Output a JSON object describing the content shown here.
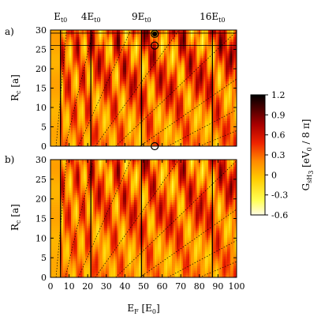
{
  "chart_data": [
    {
      "type": "heatmap",
      "panel": "a)",
      "xlabel": {
        "main": "E",
        "sub": "F",
        "unit": " [E",
        "unit_sub": "0",
        "unit_end": "]"
      },
      "ylabel": {
        "main": "R",
        "sub": "c",
        "unit": " [a]"
      },
      "xlim": [
        0,
        100
      ],
      "ylim": [
        0,
        30
      ],
      "y_ticks": [
        0,
        5,
        10,
        15,
        20,
        25,
        30
      ],
      "top_markers": [
        {
          "coef": "",
          "x": 5.4
        },
        {
          "coef": "4",
          "x": 21.7
        },
        {
          "coef": "9",
          "x": 48.9
        },
        {
          "coef": "16",
          "x": 87.0
        }
      ],
      "marker_label_main": "E",
      "marker_label_sub": "t0",
      "horizontal_lines_y": [
        26,
        29.2
      ],
      "circles": [
        {
          "x": 56,
          "y": 29
        },
        {
          "x": 56,
          "y": 26
        },
        {
          "x": 56,
          "y": 0
        }
      ],
      "filled_circle": {
        "x": 56,
        "y": 29
      }
    },
    {
      "type": "heatmap",
      "panel": "b)",
      "xlim": [
        0,
        100
      ],
      "ylim": [
        0,
        30
      ],
      "x_ticks": [
        0,
        10,
        20,
        30,
        40,
        50,
        60,
        70,
        80,
        90,
        100
      ],
      "y_ticks": [
        0,
        5,
        10,
        15,
        20,
        25,
        30
      ],
      "vertical_lines_x": [
        5.4,
        21.7,
        48.9,
        87.0
      ]
    }
  ],
  "colorbar": {
    "label": {
      "main": "G",
      "sub": "sH",
      "sub2": "3",
      "unit": " [eV",
      "unit_sub": "0",
      "unit_end": " / 8 π]"
    },
    "ticks": [
      1.2,
      0.9,
      0.6,
      0.3,
      0,
      -0.3,
      -0.6
    ],
    "range": [
      -0.6,
      1.2
    ],
    "colors": [
      "#fffbe6",
      "#ffff55",
      "#ffcc00",
      "#ff8800",
      "#ee2200",
      "#aa0000",
      "#500000",
      "#000000"
    ]
  }
}
